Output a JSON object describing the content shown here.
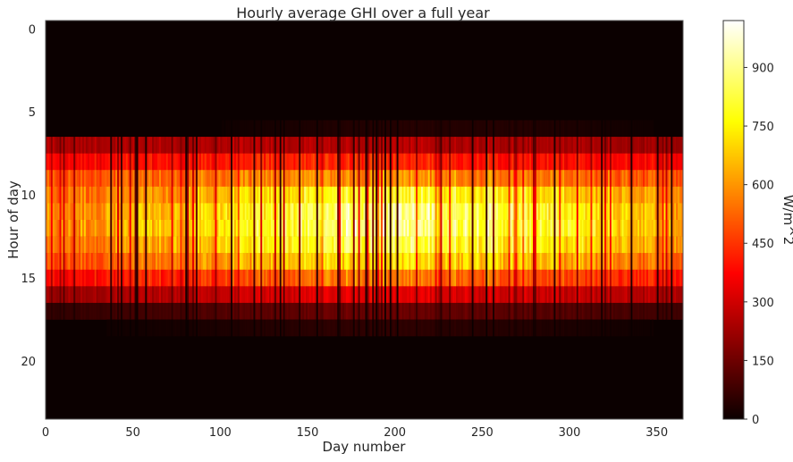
{
  "chart_data": {
    "type": "heatmap",
    "title": "Hourly average GHI over a full year",
    "xlabel": "Day number",
    "ylabel": "Hour of day",
    "colorbar_label": "W/m^2",
    "colormap": "hot",
    "x_range": [
      0,
      365
    ],
    "y_range": [
      0,
      23
    ],
    "color_range": [
      0,
      1020
    ],
    "x_ticks": [
      "0",
      "50",
      "100",
      "150",
      "200",
      "250",
      "300",
      "350"
    ],
    "y_ticks": [
      "0",
      "5",
      "10",
      "15",
      "20"
    ],
    "colorbar_ticks": [
      "0",
      "150",
      "300",
      "450",
      "600",
      "750",
      "900"
    ],
    "hours": [
      0,
      1,
      2,
      3,
      4,
      5,
      6,
      7,
      8,
      9,
      10,
      11,
      12,
      13,
      14,
      15,
      16,
      17,
      18,
      19,
      20,
      21,
      22,
      23
    ],
    "seasonal_profile_by_hour": {
      "6": [
        0,
        0,
        40,
        40,
        0
      ],
      "7": [
        260,
        260,
        280,
        260,
        230
      ],
      "8": [
        390,
        420,
        460,
        420,
        380
      ],
      "9": [
        510,
        560,
        640,
        590,
        520
      ],
      "10": [
        560,
        640,
        850,
        780,
        600
      ],
      "11": [
        590,
        700,
        950,
        880,
        640
      ],
      "12": [
        600,
        720,
        960,
        890,
        650
      ],
      "13": [
        560,
        670,
        900,
        820,
        620
      ],
      "14": [
        500,
        600,
        780,
        720,
        540
      ],
      "15": [
        390,
        450,
        600,
        540,
        420
      ],
      "16": [
        230,
        280,
        360,
        320,
        260
      ],
      "17": [
        60,
        100,
        160,
        130,
        80
      ],
      "18": [
        0,
        20,
        60,
        40,
        0
      ]
    },
    "profile_days": [
      0,
      80,
      180,
      270,
      365
    ],
    "grid": false
  }
}
